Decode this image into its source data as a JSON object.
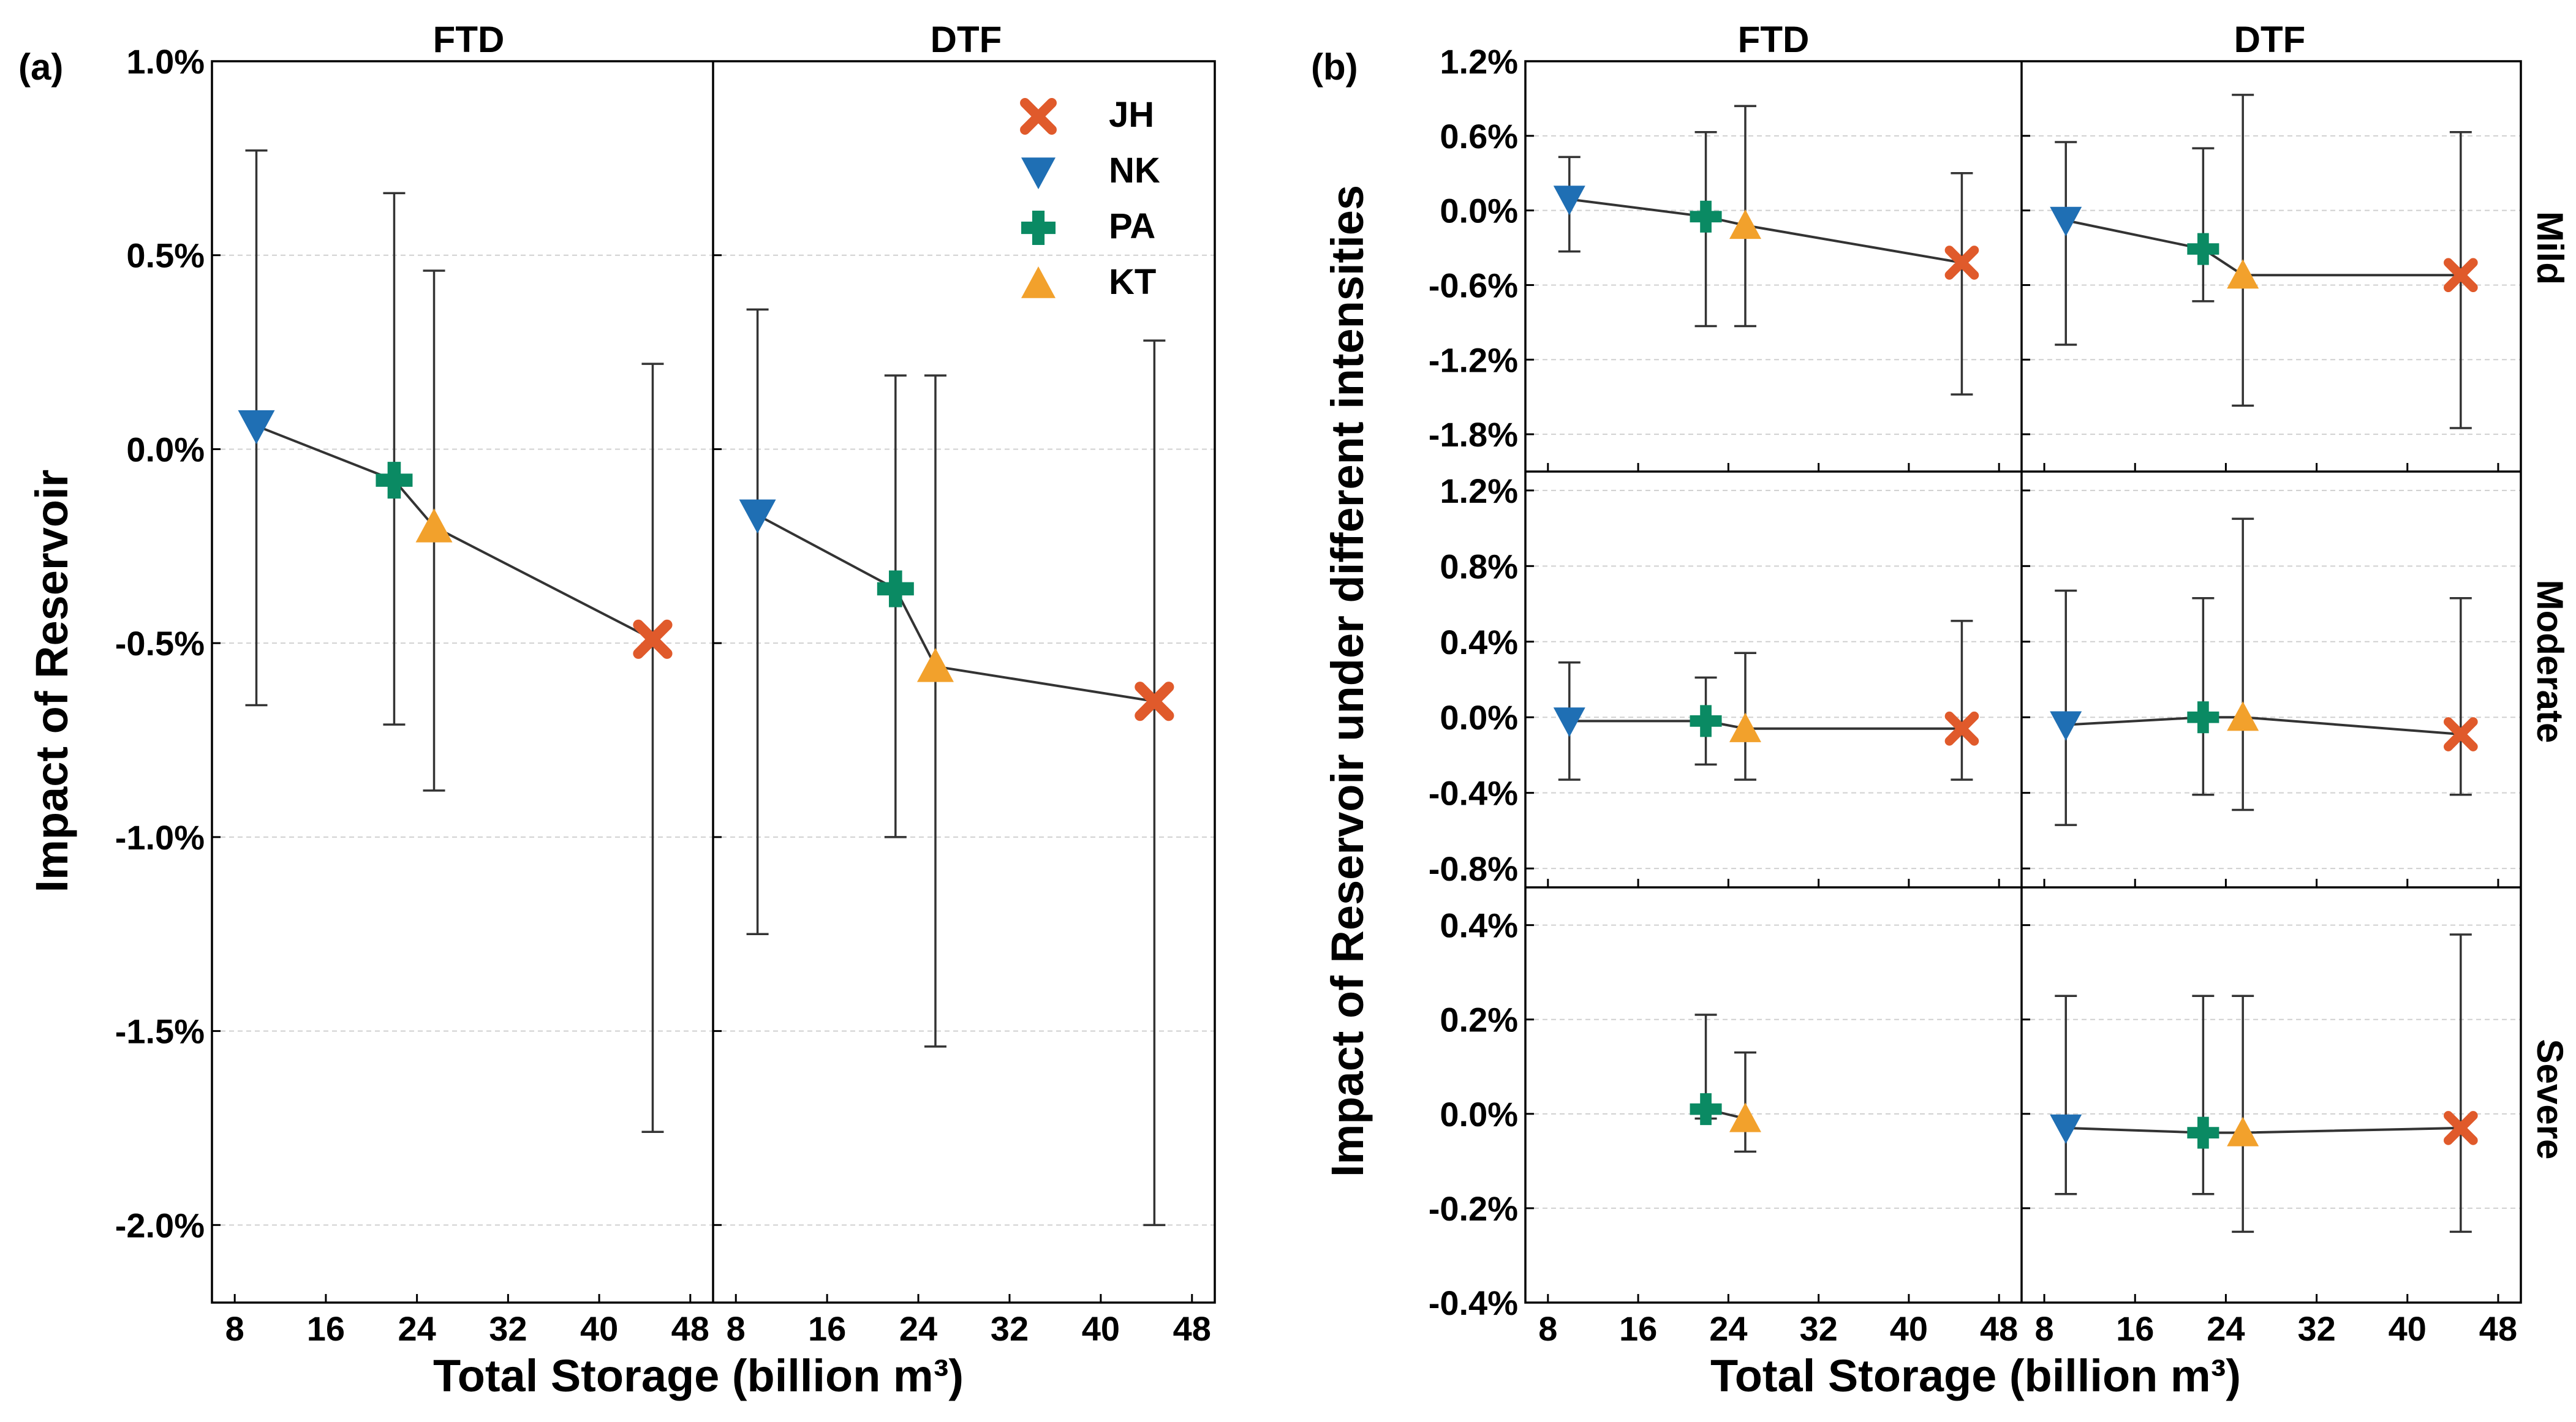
{
  "colors": {
    "JH": "#e05a2b",
    "NK": "#1f6fb4",
    "PA": "#0a8a63",
    "KT": "#f2a12c",
    "line": "#333333",
    "grid": "#d0d0d0"
  },
  "chart_data": [
    {
      "id": "a",
      "type": "scatter",
      "panel_label": "(a)",
      "xlabel": "Total Storage (billion m³)",
      "ylabel": "Impact of Reservoir",
      "xlim": [
        6,
        50
      ],
      "xticks": [
        8,
        16,
        24,
        32,
        40,
        48
      ],
      "x_tick_labels": [
        "8",
        "16",
        "24",
        "32",
        "40",
        "48"
      ],
      "ylim": [
        -2.2,
        1.0
      ],
      "yticks": [
        1.0,
        0.5,
        0.0,
        -0.5,
        -1.0,
        -1.5,
        -2.0
      ],
      "y_tick_labels": [
        "1.0%",
        "0.5%",
        "0.0%",
        "-0.5%",
        "-1.0%",
        "-1.5%",
        "-2.0%"
      ],
      "columns": [
        "FTD",
        "DTF"
      ],
      "legend": {
        "position": "top-right",
        "entries": [
          {
            "key": "JH",
            "label": "JH",
            "marker": "x"
          },
          {
            "key": "NK",
            "label": "NK",
            "marker": "tri-down"
          },
          {
            "key": "PA",
            "label": "PA",
            "marker": "plus"
          },
          {
            "key": "KT",
            "label": "KT",
            "marker": "tri-up"
          }
        ]
      },
      "facets": [
        {
          "column": "FTD",
          "points": [
            {
              "reservoir": "NK",
              "x": 9.9,
              "y": 0.06,
              "lo": -0.66,
              "hi": 0.77
            },
            {
              "reservoir": "PA",
              "x": 22.0,
              "y": -0.08,
              "lo": -0.71,
              "hi": 0.66
            },
            {
              "reservoir": "KT",
              "x": 25.5,
              "y": -0.2,
              "lo": -0.88,
              "hi": 0.46
            },
            {
              "reservoir": "JH",
              "x": 44.7,
              "y": -0.49,
              "lo": -1.76,
              "hi": 0.22
            }
          ]
        },
        {
          "column": "DTF",
          "points": [
            {
              "reservoir": "NK",
              "x": 9.9,
              "y": -0.17,
              "lo": -1.25,
              "hi": 0.36
            },
            {
              "reservoir": "PA",
              "x": 22.0,
              "y": -0.36,
              "lo": -1.0,
              "hi": 0.19
            },
            {
              "reservoir": "KT",
              "x": 25.5,
              "y": -0.56,
              "lo": -1.54,
              "hi": 0.19
            },
            {
              "reservoir": "JH",
              "x": 44.7,
              "y": -0.65,
              "lo": -2.0,
              "hi": 0.28
            }
          ]
        }
      ]
    },
    {
      "id": "b",
      "type": "scatter",
      "panel_label": "(b)",
      "xlabel": "Total Storage (billion m³)",
      "ylabel": "Impact of Reservoir under different intensities",
      "xlim": [
        6,
        50
      ],
      "xticks": [
        8,
        16,
        24,
        32,
        40,
        48
      ],
      "x_tick_labels": [
        "8",
        "16",
        "24",
        "32",
        "40",
        "48"
      ],
      "columns": [
        "FTD",
        "DTF"
      ],
      "rows": [
        {
          "label": "Mild",
          "ylim": [
            -2.1,
            1.2
          ],
          "yticks": [
            1.2,
            0.6,
            0.0,
            -0.6,
            -1.2,
            -1.8
          ],
          "y_tick_labels": [
            "1.2%",
            "0.6%",
            "0.0%",
            "-0.6%",
            "-1.2%",
            "-1.8%"
          ],
          "facets": [
            {
              "column": "FTD",
              "points": [
                {
                  "reservoir": "NK",
                  "x": 9.9,
                  "y": 0.09,
                  "lo": -0.33,
                  "hi": 0.43
                },
                {
                  "reservoir": "PA",
                  "x": 22.0,
                  "y": -0.05,
                  "lo": -0.93,
                  "hi": 0.63
                },
                {
                  "reservoir": "KT",
                  "x": 25.5,
                  "y": -0.12,
                  "lo": -0.93,
                  "hi": 0.84
                },
                {
                  "reservoir": "JH",
                  "x": 44.7,
                  "y": -0.42,
                  "lo": -1.48,
                  "hi": 0.3
                }
              ]
            },
            {
              "column": "DTF",
              "points": [
                {
                  "reservoir": "NK",
                  "x": 9.9,
                  "y": -0.08,
                  "lo": -1.08,
                  "hi": 0.55
                },
                {
                  "reservoir": "PA",
                  "x": 22.0,
                  "y": -0.31,
                  "lo": -0.73,
                  "hi": 0.5
                },
                {
                  "reservoir": "KT",
                  "x": 25.5,
                  "y": -0.52,
                  "lo": -1.57,
                  "hi": 0.93
                },
                {
                  "reservoir": "JH",
                  "x": 44.7,
                  "y": -0.52,
                  "lo": -1.75,
                  "hi": 0.63
                }
              ]
            }
          ]
        },
        {
          "label": "Moderate",
          "ylim": [
            -0.9,
            1.3
          ],
          "yticks": [
            1.2,
            0.8,
            0.4,
            0.0,
            -0.4,
            -0.8
          ],
          "y_tick_labels": [
            "1.2%",
            "0.8%",
            "0.4%",
            "0.0%",
            "-0.4%",
            "-0.8%"
          ],
          "facets": [
            {
              "column": "FTD",
              "points": [
                {
                  "reservoir": "NK",
                  "x": 9.9,
                  "y": -0.02,
                  "lo": -0.33,
                  "hi": 0.29
                },
                {
                  "reservoir": "PA",
                  "x": 22.0,
                  "y": -0.02,
                  "lo": -0.25,
                  "hi": 0.21
                },
                {
                  "reservoir": "KT",
                  "x": 25.5,
                  "y": -0.06,
                  "lo": -0.33,
                  "hi": 0.34
                },
                {
                  "reservoir": "JH",
                  "x": 44.7,
                  "y": -0.06,
                  "lo": -0.33,
                  "hi": 0.51
                }
              ]
            },
            {
              "column": "DTF",
              "points": [
                {
                  "reservoir": "NK",
                  "x": 9.9,
                  "y": -0.04,
                  "lo": -0.57,
                  "hi": 0.67
                },
                {
                  "reservoir": "PA",
                  "x": 22.0,
                  "y": 0.0,
                  "lo": -0.41,
                  "hi": 0.63
                },
                {
                  "reservoir": "KT",
                  "x": 25.5,
                  "y": 0.0,
                  "lo": -0.49,
                  "hi": 1.05
                },
                {
                  "reservoir": "JH",
                  "x": 44.7,
                  "y": -0.09,
                  "lo": -0.41,
                  "hi": 0.63
                }
              ]
            }
          ]
        },
        {
          "label": "Severe",
          "ylim": [
            -0.4,
            0.48
          ],
          "yticks": [
            0.4,
            0.2,
            0.0,
            -0.2,
            -0.4
          ],
          "y_tick_labels": [
            "0.4%",
            "0.2%",
            "0.0%",
            "-0.2%",
            "-0.4%"
          ],
          "facets": [
            {
              "column": "FTD",
              "points": [
                {
                  "reservoir": "PA",
                  "x": 22.0,
                  "y": 0.01,
                  "lo": -0.01,
                  "hi": 0.21
                },
                {
                  "reservoir": "KT",
                  "x": 25.5,
                  "y": -0.01,
                  "lo": -0.08,
                  "hi": 0.13
                }
              ]
            },
            {
              "column": "DTF",
              "points": [
                {
                  "reservoir": "NK",
                  "x": 9.9,
                  "y": -0.03,
                  "lo": -0.17,
                  "hi": 0.25
                },
                {
                  "reservoir": "PA",
                  "x": 22.0,
                  "y": -0.04,
                  "lo": -0.17,
                  "hi": 0.25
                },
                {
                  "reservoir": "KT",
                  "x": 25.5,
                  "y": -0.04,
                  "lo": -0.25,
                  "hi": 0.25
                },
                {
                  "reservoir": "JH",
                  "x": 44.7,
                  "y": -0.03,
                  "lo": -0.25,
                  "hi": 0.38
                }
              ]
            }
          ]
        }
      ]
    }
  ]
}
